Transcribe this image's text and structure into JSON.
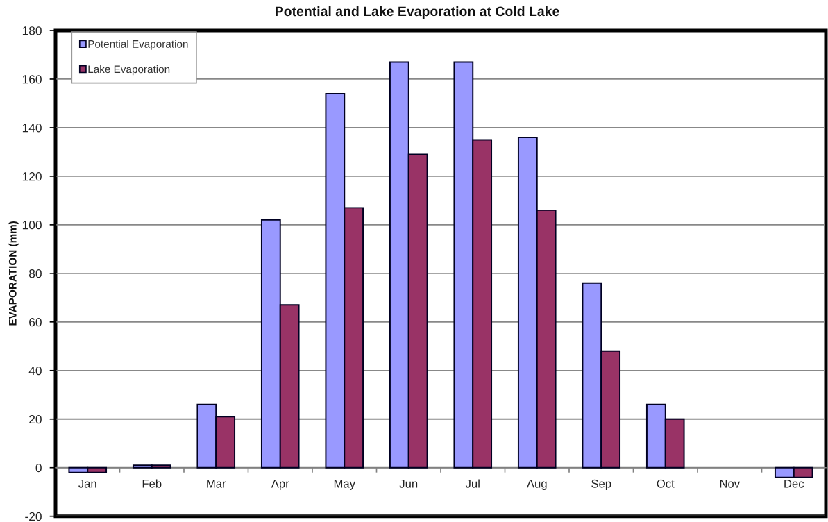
{
  "chart_data": {
    "type": "bar",
    "title": "Potential and Lake Evaporation at Cold Lake",
    "ylabel": "EVAPORATION (mm)",
    "categories": [
      "Jan",
      "Feb",
      "Mar",
      "Apr",
      "May",
      "Jun",
      "Jul",
      "Aug",
      "Sep",
      "Oct",
      "Nov",
      "Dec"
    ],
    "series": [
      {
        "name": "Potential Evaporation",
        "color": "#9999ff",
        "values": [
          -2,
          1,
          26,
          102,
          154,
          167,
          167,
          136,
          76,
          26,
          null,
          -4
        ]
      },
      {
        "name": "Lake Evaporation",
        "color": "#993366",
        "values": [
          -2,
          1,
          21,
          67,
          107,
          129,
          135,
          106,
          48,
          20,
          null,
          -4
        ]
      }
    ],
    "ylim": [
      -20,
      180
    ],
    "yticks": [
      -20,
      0,
      20,
      40,
      60,
      80,
      100,
      120,
      140,
      160,
      180
    ],
    "grid": "y",
    "legend": "top left"
  }
}
